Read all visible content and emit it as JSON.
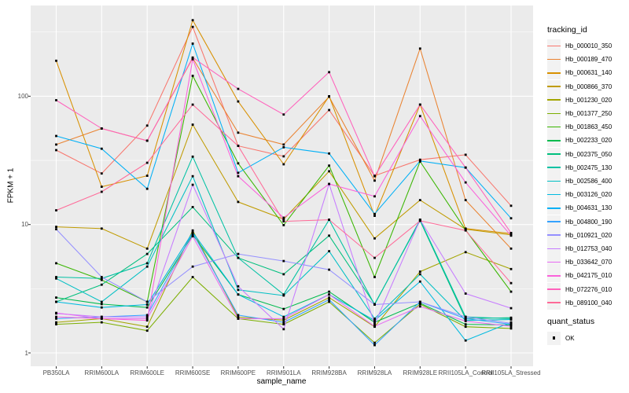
{
  "chart_data": {
    "type": "line",
    "title": "",
    "xlabel": "sample_name",
    "ylabel": "FPKM + 1",
    "y_scale": "log10",
    "y_ticks": [
      1,
      10,
      100
    ],
    "y_minor_gridlines": [
      3.162,
      31.62,
      316.2
    ],
    "ylim": [
      1.05,
      515
    ],
    "grid": true,
    "legend_position": "right",
    "legend_title": "tracking_id",
    "point_legend_title": "quant_status",
    "point_legend_label": "OK",
    "categories": [
      "PB350LA",
      "RRIM600LA",
      "RRIM600LE",
      "RRIM600SE",
      "RRIM600PE",
      "RRIM901LA",
      "RRIM928BA",
      "RRIM928LA",
      "RRIM928LE",
      "RRII105LA_Control",
      "RRII105LA_Stressed"
    ],
    "series": [
      {
        "name": "Hb_000010_350",
        "color": "#F8766D",
        "values": [
          38,
          25,
          59,
          347,
          41,
          34,
          78,
          24,
          32,
          35,
          14
        ]
      },
      {
        "name": "Hb_000189_470",
        "color": "#EA8331",
        "values": [
          42,
          56,
          45,
          198,
          52,
          42,
          99,
          22,
          235,
          15.5,
          6.5
        ]
      },
      {
        "name": "Hb_000631_140",
        "color": "#D89000",
        "values": [
          189,
          19.7,
          24,
          391,
          91,
          29.5,
          100,
          11.7,
          86,
          9.3,
          8.5
        ]
      },
      {
        "name": "Hb_000866_370",
        "color": "#C09B00",
        "values": [
          9.6,
          9.3,
          6.5,
          60,
          15,
          11,
          26,
          7.8,
          15.5,
          9.2,
          8.3
        ]
      },
      {
        "name": "Hb_001230_020",
        "color": "#A3A500",
        "values": [
          1.73,
          1.85,
          1.6,
          9.0,
          1.9,
          1.8,
          2.7,
          1.6,
          4.3,
          6.1,
          4.5
        ]
      },
      {
        "name": "Hb_001377_250",
        "color": "#7CAE00",
        "values": [
          1.67,
          1.73,
          1.49,
          3.9,
          1.85,
          1.67,
          2.5,
          1.2,
          2.4,
          1.6,
          1.55
        ]
      },
      {
        "name": "Hb_001863_450",
        "color": "#39B600",
        "values": [
          5.0,
          3.7,
          2.5,
          144,
          30,
          9.9,
          28.8,
          3.9,
          31,
          9.1,
          3.0
        ]
      },
      {
        "name": "Hb_002233_020",
        "color": "#00BB4E",
        "values": [
          2.7,
          2.4,
          2.26,
          8.3,
          2.85,
          2.2,
          3.0,
          1.73,
          2.44,
          1.67,
          1.65
        ]
      },
      {
        "name": "Hb_002375_050",
        "color": "#00BF7D",
        "values": [
          2.5,
          3.4,
          5.9,
          13.7,
          5.5,
          4.1,
          8.2,
          2.4,
          10.7,
          1.85,
          1.88
        ]
      },
      {
        "name": "Hb_002475_130",
        "color": "#00C1A3",
        "values": [
          3.9,
          3.8,
          5.0,
          33.8,
          5.5,
          2.85,
          10.9,
          2.38,
          10.9,
          1.91,
          1.85
        ]
      },
      {
        "name": "Hb_002586_400",
        "color": "#00BFC4",
        "values": [
          3.8,
          2.5,
          4.7,
          23.8,
          3.1,
          2.8,
          6.2,
          1.85,
          4.1,
          1.79,
          1.82
        ]
      },
      {
        "name": "Hb_003126_020",
        "color": "#00BAE0",
        "values": [
          2.5,
          2.26,
          2.38,
          8.7,
          2.85,
          1.91,
          2.85,
          1.79,
          3.6,
          1.25,
          1.73
        ]
      },
      {
        "name": "Hb_004631_130",
        "color": "#00B0F6",
        "values": [
          49,
          39,
          19,
          257,
          25.3,
          40,
          35.8,
          12.1,
          31.3,
          27.8,
          11.2
        ]
      },
      {
        "name": "Hb_004800_190",
        "color": "#35A2FF",
        "values": [
          1.85,
          1.91,
          1.97,
          8.6,
          1.97,
          1.73,
          2.6,
          1.15,
          2.5,
          1.85,
          1.67
        ]
      },
      {
        "name": "Hb_010921_020",
        "color": "#9590FF",
        "values": [
          9.2,
          3.9,
          2.5,
          4.7,
          5.9,
          5.2,
          4.45,
          2.38,
          2.5,
          1.91,
          1.7
        ]
      },
      {
        "name": "Hb_012753_040",
        "color": "#C77CFF",
        "values": [
          2.03,
          1.91,
          1.91,
          20.4,
          3.3,
          1.53,
          20.7,
          1.67,
          10.9,
          2.9,
          2.23
        ]
      },
      {
        "name": "Hb_033642_070",
        "color": "#E76BF3",
        "values": [
          2.05,
          1.85,
          1.85,
          8.1,
          1.85,
          1.85,
          2.85,
          1.61,
          2.3,
          1.77,
          1.61
        ]
      },
      {
        "name": "Hb_042175_010",
        "color": "#FA62DB",
        "values": [
          1.91,
          1.85,
          1.79,
          194,
          23.8,
          11.3,
          20.7,
          16.6,
          70,
          21.3,
          8.2
        ]
      },
      {
        "name": "Hb_072276_010",
        "color": "#FF62BC",
        "values": [
          93,
          56,
          45,
          200,
          114,
          72,
          154,
          23.8,
          86,
          27.8,
          8.6
        ]
      },
      {
        "name": "Hb_089100_040",
        "color": "#FF6A98",
        "values": [
          12.9,
          18,
          30.3,
          86,
          41,
          10.6,
          10.9,
          5.5,
          10.7,
          9.0,
          3.5
        ]
      }
    ]
  },
  "theme": {
    "panel_bg": "#EBEBEB",
    "grid_color": "#FFFFFF",
    "point_color": "#000000",
    "legend_key_bg": "#F2F2F2",
    "axis_text_color": "#4D4D4D",
    "tick_mark_color": "#333333"
  }
}
